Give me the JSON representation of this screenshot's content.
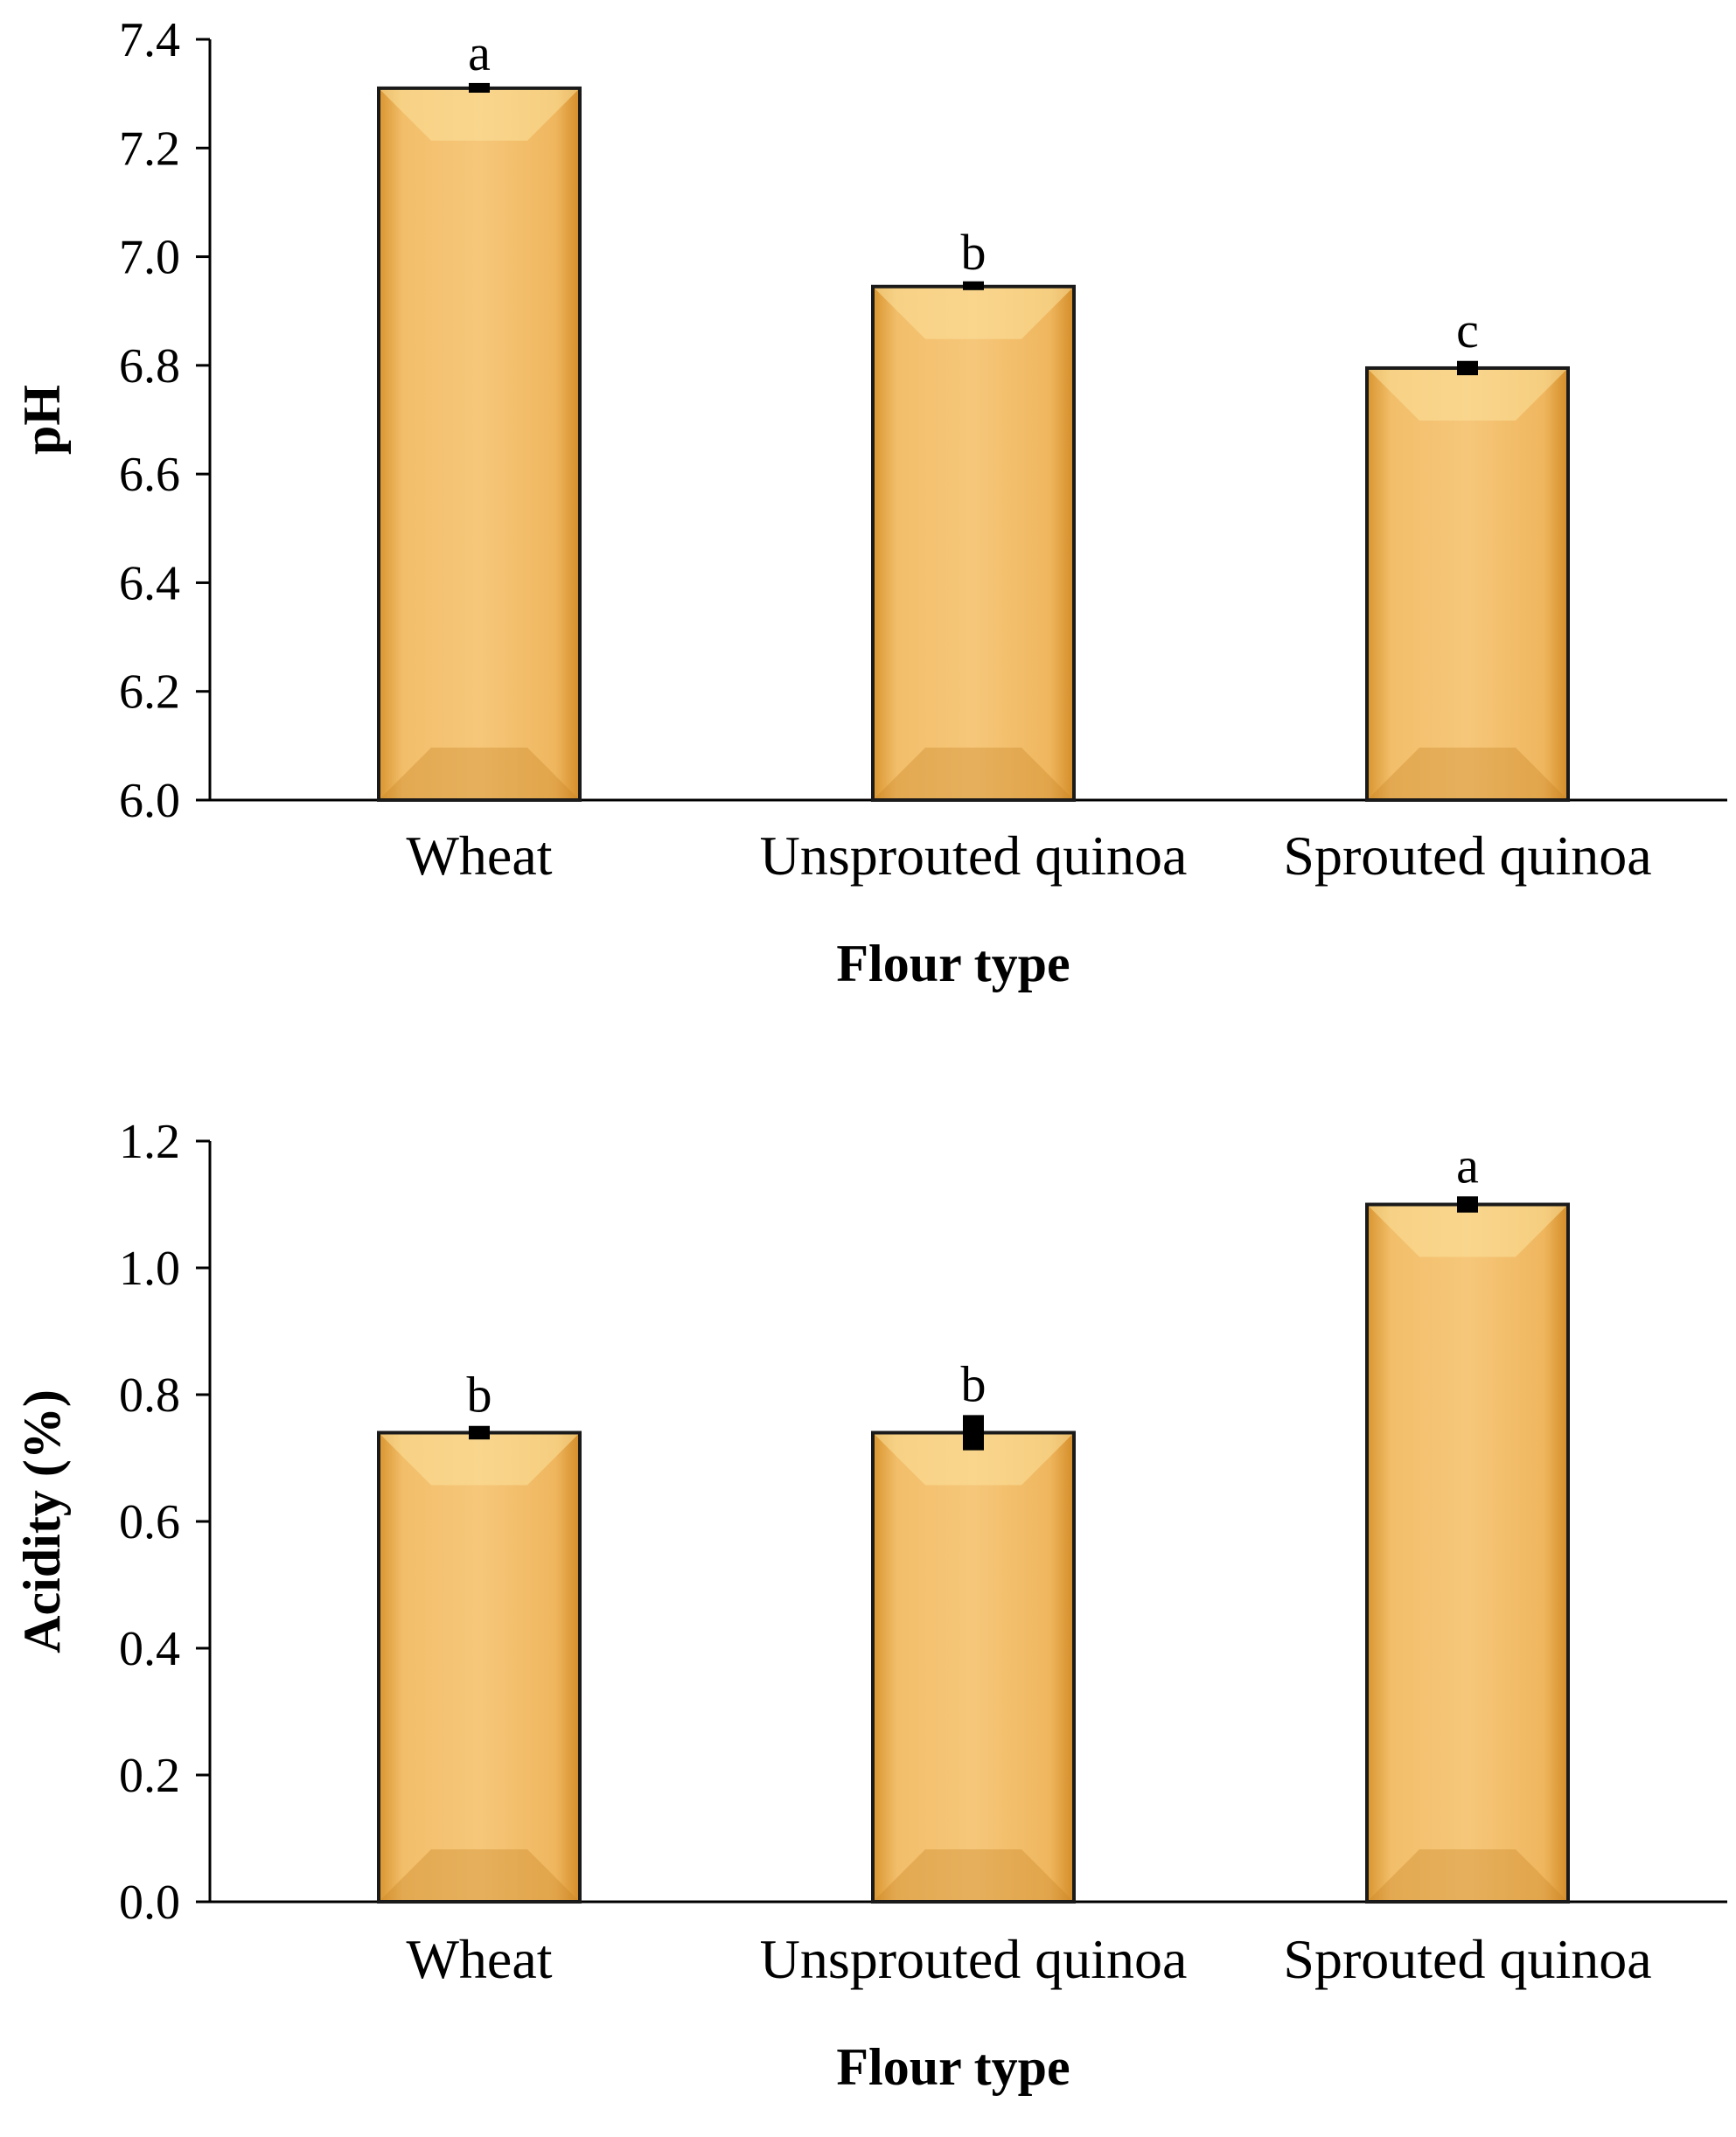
{
  "chart_data": [
    {
      "type": "bar",
      "categories": [
        "Wheat",
        "Unsprouted quinoa",
        "Sprouted quinoa"
      ],
      "values": [
        7.31,
        6.945,
        6.795
      ],
      "errors": [
        0.005,
        0.003,
        0.01
      ],
      "significance": [
        "a",
        "b",
        "c"
      ],
      "xlabel": "Flour type",
      "ylabel": "pH",
      "ylim": [
        6.0,
        7.4
      ],
      "yticks": [
        "6.0",
        "6.2",
        "6.4",
        "6.6",
        "6.8",
        "7.0",
        "7.2",
        "7.4"
      ],
      "bar_color": "#EDB25A",
      "grid": false
    },
    {
      "type": "bar",
      "categories": [
        "Wheat",
        "Unsprouted quinoa",
        "Sprouted quinoa"
      ],
      "values": [
        0.74,
        0.74,
        1.1
      ],
      "errors": [
        0.008,
        0.025,
        0.01
      ],
      "significance": [
        "b",
        "b",
        "a"
      ],
      "xlabel": "Flour type",
      "ylabel": "Acidity (%)",
      "ylim": [
        0.0,
        1.2
      ],
      "yticks": [
        "0.0",
        "0.2",
        "0.4",
        "0.6",
        "0.8",
        "1.0",
        "1.2"
      ],
      "bar_color": "#EDB25A",
      "grid": false
    }
  ]
}
